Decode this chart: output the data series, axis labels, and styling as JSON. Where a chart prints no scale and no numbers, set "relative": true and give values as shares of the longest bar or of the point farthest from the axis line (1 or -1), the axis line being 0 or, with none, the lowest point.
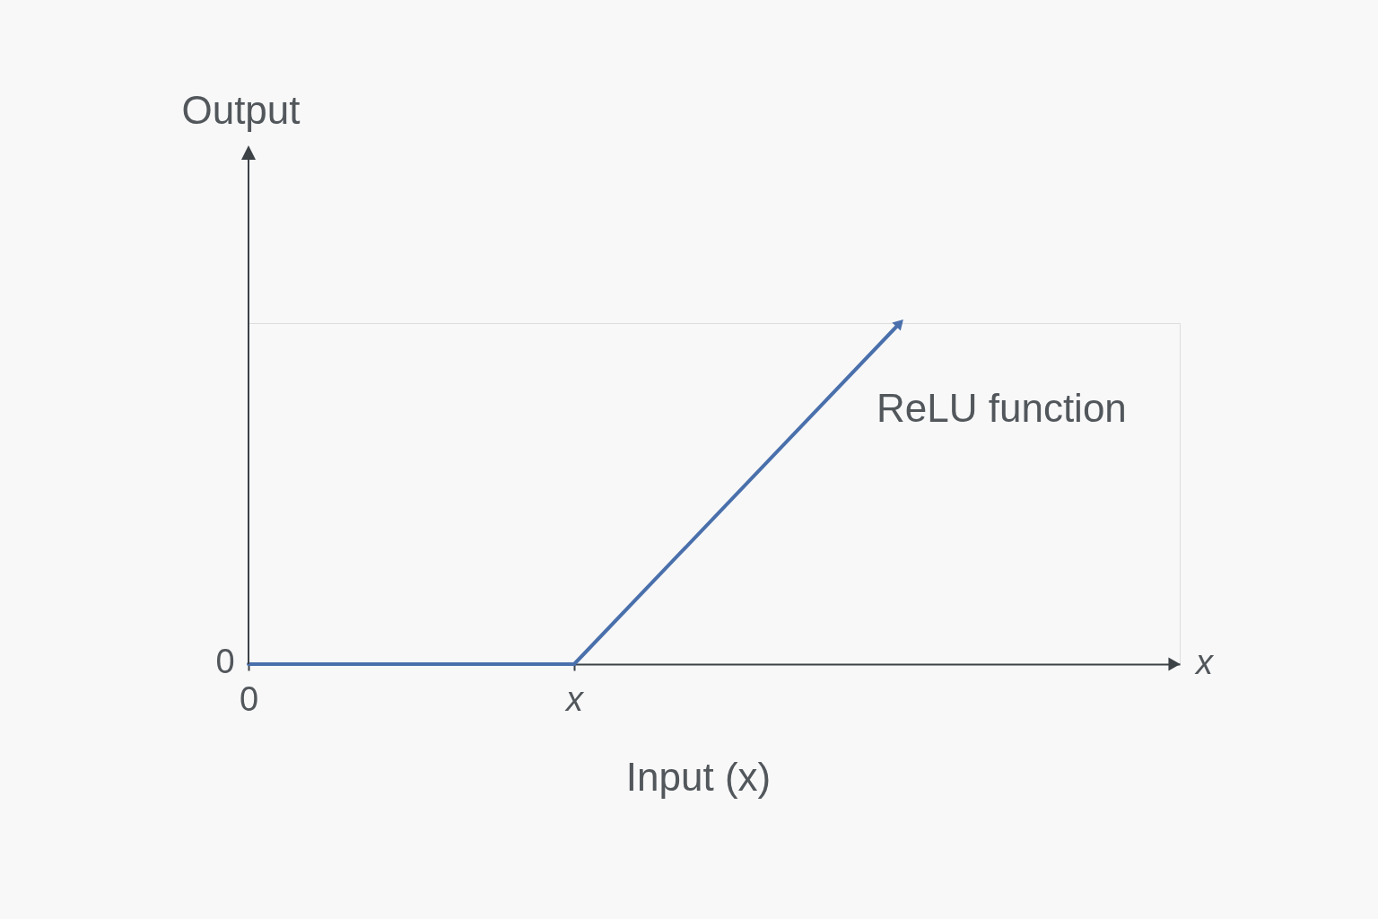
{
  "chart_data": {
    "type": "line",
    "xlabel": "Input (x)",
    "ylabel": "Output",
    "categories": [
      "0",
      "x",
      null
    ],
    "series": [
      {
        "name": "ReLU function",
        "color": "#4a70ac",
        "values": [
          0,
          0,
          1
        ]
      }
    ],
    "relative": true,
    "annotations": [
      "0",
      "x"
    ],
    "grid": false,
    "legend": false,
    "line_style": "solid"
  }
}
